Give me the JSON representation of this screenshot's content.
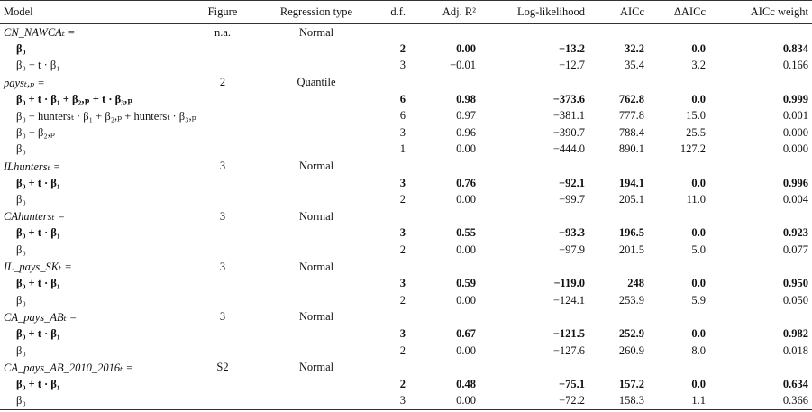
{
  "headers": [
    "Model",
    "Figure",
    "Regression type",
    "d.f.",
    "Adj. R²",
    "Log-likelihood",
    "AICc",
    "ΔAICc",
    "AICc weight"
  ],
  "groups": [
    {
      "title": "CN_NAWCAₜ =",
      "figure": "n.a.",
      "regression": "Normal",
      "rows": [
        {
          "formula": "β₀",
          "df": "2",
          "r2": "0.00",
          "ll": "−13.2",
          "aicc": "32.2",
          "daicc": "0.0",
          "w": "0.834",
          "bold": true
        },
        {
          "formula": "β₀ + t · β₁",
          "df": "3",
          "r2": "−0.01",
          "ll": "−12.7",
          "aicc": "35.4",
          "daicc": "3.2",
          "w": "0.166",
          "bold": false
        }
      ]
    },
    {
      "title": "paysₜ,ₚ =",
      "figure": "2",
      "regression": "Quantile",
      "rows": [
        {
          "formula": "β₀ + t · β₁ + β₂,ₚ + t · β₃,ₚ",
          "df": "6",
          "r2": "0.98",
          "ll": "−373.6",
          "aicc": "762.8",
          "daicc": "0.0",
          "w": "0.999",
          "bold": true
        },
        {
          "formula": "β₀ + huntersₜ · β₁ + β₂,ₚ + huntersₜ · β₃,ₚ",
          "df": "6",
          "r2": "0.97",
          "ll": "−381.1",
          "aicc": "777.8",
          "daicc": "15.0",
          "w": "0.001",
          "bold": false
        },
        {
          "formula": "β₀ + β₂,ₚ",
          "df": "3",
          "r2": "0.96",
          "ll": "−390.7",
          "aicc": "788.4",
          "daicc": "25.5",
          "w": "0.000",
          "bold": false
        },
        {
          "formula": "β₀",
          "df": "1",
          "r2": "0.00",
          "ll": "−444.0",
          "aicc": "890.1",
          "daicc": "127.2",
          "w": "0.000",
          "bold": false
        }
      ]
    },
    {
      "title": "ILhuntersₜ =",
      "figure": "3",
      "regression": "Normal",
      "rows": [
        {
          "formula": "β₀ + t · β₁",
          "df": "3",
          "r2": "0.76",
          "ll": "−92.1",
          "aicc": "194.1",
          "daicc": "0.0",
          "w": "0.996",
          "bold": true
        },
        {
          "formula": "β₀",
          "df": "2",
          "r2": "0.00",
          "ll": "−99.7",
          "aicc": "205.1",
          "daicc": "11.0",
          "w": "0.004",
          "bold": false
        }
      ]
    },
    {
      "title": "CAhuntersₜ =",
      "figure": "3",
      "regression": "Normal",
      "rows": [
        {
          "formula": "β₀ + t · β₁",
          "df": "3",
          "r2": "0.55",
          "ll": "−93.3",
          "aicc": "196.5",
          "daicc": "0.0",
          "w": "0.923",
          "bold": true
        },
        {
          "formula": "β₀",
          "df": "2",
          "r2": "0.00",
          "ll": "−97.9",
          "aicc": "201.5",
          "daicc": "5.0",
          "w": "0.077",
          "bold": false
        }
      ]
    },
    {
      "title": "IL_pays_SKₜ =",
      "figure": "3",
      "regression": "Normal",
      "rows": [
        {
          "formula": "β₀ + t · β₁",
          "df": "3",
          "r2": "0.59",
          "ll": "−119.0",
          "aicc": "248",
          "daicc": "0.0",
          "w": "0.950",
          "bold": true
        },
        {
          "formula": "β₀",
          "df": "2",
          "r2": "0.00",
          "ll": "−124.1",
          "aicc": "253.9",
          "daicc": "5.9",
          "w": "0.050",
          "bold": false
        }
      ]
    },
    {
      "title": "CA_pays_ABₜ =",
      "figure": "3",
      "regression": "Normal",
      "rows": [
        {
          "formula": "β₀ + t · β₁",
          "df": "3",
          "r2": "0.67",
          "ll": "−121.5",
          "aicc": "252.9",
          "daicc": "0.0",
          "w": "0.982",
          "bold": true
        },
        {
          "formula": "β₀",
          "df": "2",
          "r2": "0.00",
          "ll": "−127.6",
          "aicc": "260.9",
          "daicc": "8.0",
          "w": "0.018",
          "bold": false
        }
      ]
    },
    {
      "title": "CA_pays_AB_2010_2016ₜ =",
      "figure": "S2",
      "regression": "Normal",
      "rows": [
        {
          "formula": "β₀ + t · β₁",
          "df": "2",
          "r2": "0.48",
          "ll": "−75.1",
          "aicc": "157.2",
          "daicc": "0.0",
          "w": "0.634",
          "bold": true
        },
        {
          "formula": "β₀",
          "df": "3",
          "r2": "0.00",
          "ll": "−72.2",
          "aicc": "158.3",
          "daicc": "1.1",
          "w": "0.366",
          "bold": false
        }
      ]
    }
  ]
}
